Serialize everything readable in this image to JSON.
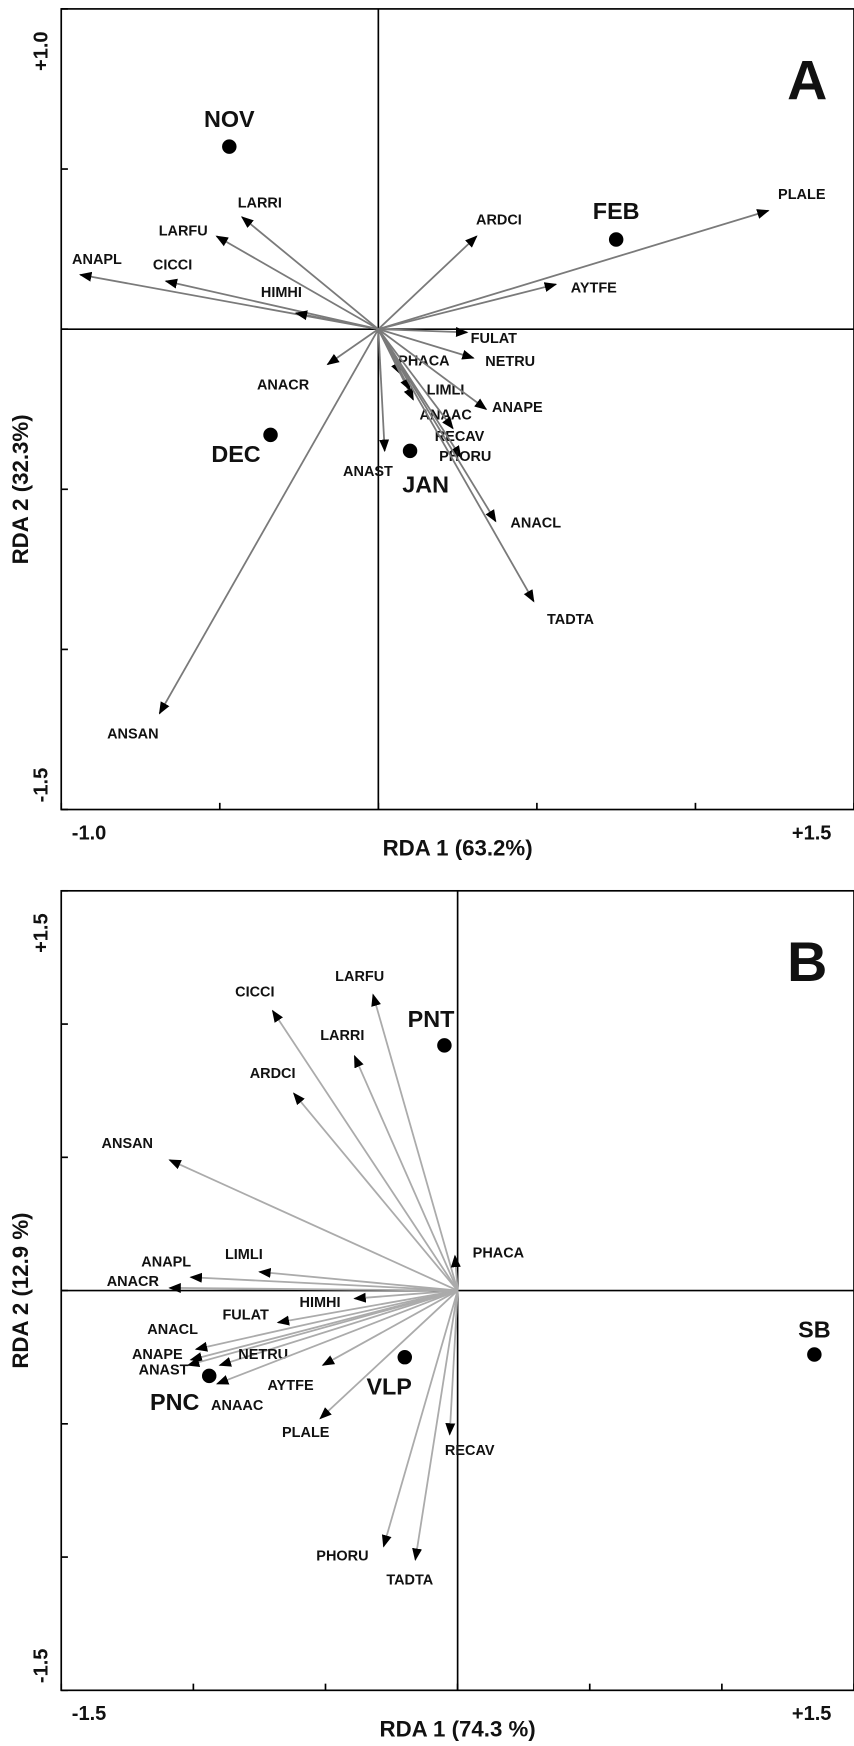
{
  "chart_data": [
    {
      "type": "biplot",
      "panel_label": "A",
      "xlabel": "RDA 1 (63.2%)",
      "ylabel": "RDA 2 (32.3%)",
      "xlim": [
        -1.0,
        1.5
      ],
      "ylim": [
        -1.5,
        1.0
      ],
      "xticks": [
        {
          "value": -1.0,
          "label": "-1.0"
        },
        {
          "value": 1.5,
          "label": "+1.5"
        }
      ],
      "yticks": [
        {
          "value": 1.0,
          "label": "+1.0"
        },
        {
          "value": -1.5,
          "label": "-1.5"
        }
      ],
      "minor_xticks": [
        -0.5,
        0,
        0.5,
        1.0
      ],
      "minor_yticks": [
        0.5,
        0,
        -0.5,
        -1.0
      ],
      "arrow_color": "#7a7a7a",
      "vectors": {
        "names": [
          "PLALE",
          "ARDCI",
          "AYTFE",
          "FULAT",
          "NETRU",
          "PHACA",
          "LIMLI",
          "ANAPE",
          "ANAAC",
          "RECAV",
          "PHORU",
          "ANACL",
          "TADTA",
          "ANAST",
          "ANACR",
          "ANSAN",
          "ANAPL",
          "CICCI",
          "HIMHI",
          "LARFU",
          "LARRI"
        ],
        "x": [
          1.23,
          0.31,
          0.56,
          0.28,
          0.3,
          0.07,
          0.11,
          0.34,
          0.1,
          0.235,
          0.26,
          0.37,
          0.49,
          0.02,
          -0.16,
          -0.69,
          -0.94,
          -0.67,
          -0.26,
          -0.51,
          -0.43
        ],
        "y": [
          0.37,
          0.29,
          0.14,
          -0.01,
          -0.09,
          -0.14,
          -0.22,
          -0.25,
          -0.19,
          -0.31,
          -0.4,
          -0.6,
          -0.85,
          -0.38,
          -0.11,
          -1.2,
          0.17,
          0.15,
          0.05,
          0.29,
          0.35
        ]
      },
      "points": {
        "names": [
          "NOV",
          "FEB",
          "DEC",
          "JAN"
        ],
        "x": [
          -0.47,
          0.75,
          -0.34,
          0.1
        ],
        "y": [
          0.57,
          0.28,
          -0.33,
          -0.38
        ]
      }
    },
    {
      "type": "biplot",
      "panel_label": "B",
      "xlabel": "RDA 1 (74.3 %)",
      "ylabel": "RDA 2 (12.9 %)",
      "xlim": [
        -1.5,
        1.5
      ],
      "ylim": [
        -1.5,
        1.5
      ],
      "xticks": [
        {
          "value": -1.5,
          "label": "-1.5"
        },
        {
          "value": 1.5,
          "label": "+1.5"
        }
      ],
      "yticks": [
        {
          "value": 1.5,
          "label": "+1.5"
        },
        {
          "value": -1.5,
          "label": "-1.5"
        }
      ],
      "minor_xticks": [
        -1.0,
        -0.5,
        0,
        0.5,
        1.0
      ],
      "minor_yticks": [
        1.0,
        0.5,
        0,
        -0.5,
        -1.0
      ],
      "arrow_color": "#ababab",
      "vectors": {
        "names": [
          "CICCI",
          "LARFU",
          "LARRI",
          "ARDCI",
          "ANSAN",
          "PHACA",
          "LIMLI",
          "ANAPL",
          "ANACR",
          "HIMHI",
          "FULAT",
          "ANACL",
          "ANAPE",
          "ANAST",
          "NETRU",
          "ANAAC",
          "AYTFE",
          "PLALE",
          "RECAV",
          "PHORU",
          "TADTA"
        ],
        "x": [
          -0.7,
          -0.32,
          -0.39,
          -0.62,
          -1.09,
          -0.01,
          -0.75,
          -1.01,
          -1.09,
          -0.39,
          -0.68,
          -0.99,
          -1.01,
          -1.02,
          -0.9,
          -0.91,
          -0.51,
          -0.52,
          -0.03,
          -0.28,
          -0.16
        ],
        "y": [
          1.05,
          1.11,
          0.88,
          0.74,
          0.49,
          0.13,
          0.07,
          0.05,
          0.01,
          -0.03,
          -0.12,
          -0.22,
          -0.26,
          -0.28,
          -0.28,
          -0.35,
          -0.28,
          -0.48,
          -0.54,
          -0.96,
          -1.01
        ]
      },
      "points": {
        "names": [
          "PNT",
          "SB",
          "VLP",
          "PNC"
        ],
        "x": [
          -0.05,
          1.35,
          -0.2,
          -0.94
        ],
        "y": [
          0.92,
          -0.24,
          -0.25,
          -0.32
        ]
      }
    }
  ]
}
